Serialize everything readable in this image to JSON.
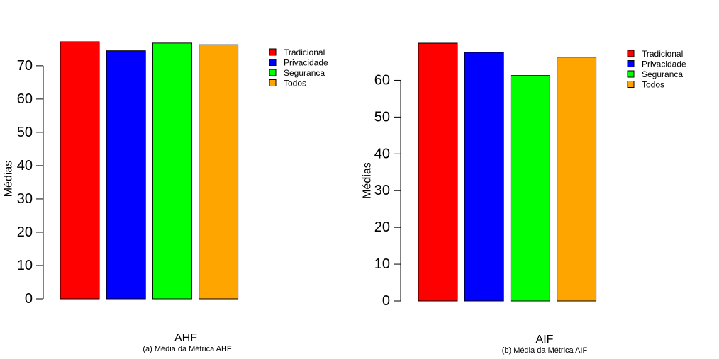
{
  "chart_data": [
    {
      "type": "bar",
      "categories": [
        "Tradicional",
        "Privacidade",
        "Seguranca",
        "Todos"
      ],
      "values": [
        77.2,
        74.5,
        76.8,
        76.3
      ],
      "colors": [
        "#ff0000",
        "#0000ff",
        "#00ff00",
        "#ffa500"
      ],
      "ylabel": "Médias",
      "xlabel": "AHF",
      "caption": "(a) Média da Métrica AHF",
      "yticks": [
        0,
        10,
        20,
        30,
        40,
        50,
        60,
        70
      ],
      "ylim": [
        0,
        77.2
      ],
      "legend": [
        "Tradicional",
        "Privacidade",
        "Seguranca",
        "Todos"
      ],
      "legend_position": "top-right",
      "grid": false
    },
    {
      "type": "bar",
      "categories": [
        "Tradicional",
        "Privacidade",
        "Seguranca",
        "Todos"
      ],
      "values": [
        70.1,
        67.6,
        61.3,
        66.3
      ],
      "colors": [
        "#ff0000",
        "#0000ff",
        "#00ff00",
        "#ffa500"
      ],
      "ylabel": "Médias",
      "xlabel": "AIF",
      "caption": "(b) Média da Métrica AIF",
      "yticks": [
        0,
        10,
        20,
        30,
        40,
        50,
        60
      ],
      "ylim": [
        0,
        70.1
      ],
      "legend": [
        "Tradicional",
        "Privacidade",
        "Seguranca",
        "Todos"
      ],
      "legend_position": "top-right",
      "grid": false
    }
  ]
}
